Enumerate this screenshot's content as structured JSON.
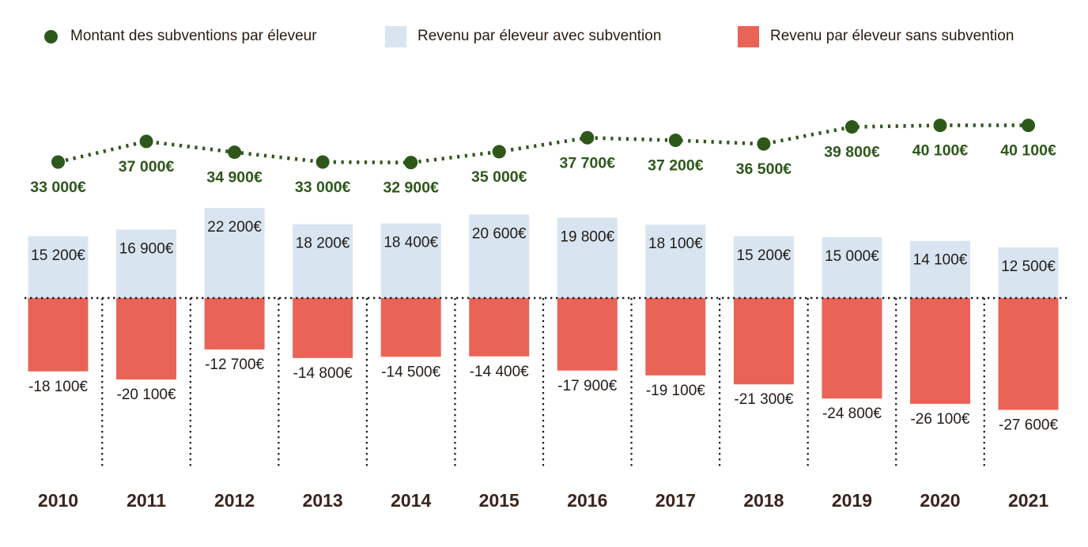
{
  "legend": {
    "items": [
      {
        "label": "Montant des subventions par éleveur",
        "swatch": "dot",
        "color": "#2d581a"
      },
      {
        "label": "Revenu par éleveur avec subvention",
        "swatch": "square",
        "color": "#d8e5f1"
      },
      {
        "label": "Revenu par éleveur sans subvention",
        "swatch": "square",
        "color": "#e96457"
      }
    ]
  },
  "chart_data": {
    "type": "combo-bar-line",
    "categories": [
      "2010",
      "2011",
      "2012",
      "2013",
      "2014",
      "2015",
      "2016",
      "2017",
      "2018",
      "2019",
      "2020",
      "2021"
    ],
    "series": [
      {
        "name": "Montant des subventions par éleveur",
        "type": "line",
        "style": "dotted",
        "color": "#2d581a",
        "values": [
          33000,
          37000,
          34900,
          33000,
          32900,
          35000,
          37700,
          37200,
          36500,
          39800,
          40100,
          40100
        ],
        "labels": [
          "33 000€",
          "37 000€",
          "34 900€",
          "33 000€",
          "32 900€",
          "35 000€",
          "37 700€",
          "37 200€",
          "36 500€",
          "39 800€",
          "40 100€",
          "40 100€"
        ]
      },
      {
        "name": "Revenu par éleveur avec subvention",
        "type": "bar",
        "color": "#d8e5f1",
        "values": [
          15200,
          16900,
          22200,
          18200,
          18400,
          20600,
          19800,
          18100,
          15200,
          15000,
          14100,
          12500
        ],
        "labels": [
          "15 200€",
          "16 900€",
          "22 200€",
          "18 200€",
          "18 400€",
          "20 600€",
          "19 800€",
          "18 100€",
          "15 200€",
          "15 000€",
          "14 100€",
          "12 500€"
        ]
      },
      {
        "name": "Revenu par éleveur sans subvention",
        "type": "bar",
        "color": "#e96457",
        "values": [
          -18100,
          -20100,
          -12700,
          -14800,
          -14500,
          -14400,
          -17900,
          -19100,
          -21300,
          -24800,
          -26100,
          -27600
        ],
        "labels": [
          "-18 100€",
          "-20 100€",
          "-12 700€",
          "-14 800€",
          "-14 500€",
          "-14 400€",
          "-17 900€",
          "-19 100€",
          "-21 300€",
          "-24 800€",
          "-26 100€",
          "-27 600€"
        ]
      }
    ],
    "value_suffix": "€",
    "title": "",
    "xlabel": "",
    "ylabel": "",
    "bar_ylim": [
      -30000,
      25000
    ],
    "line_ylim": [
      30000,
      42000
    ],
    "grid": "dotted horizontal zero line and dotted vertical separators between years",
    "legend_position": "top"
  },
  "colors": {
    "line_green": "#2d581a",
    "bar_blue": "#d8e5f1",
    "bar_red": "#e96457",
    "axis_dots": "#1c1c1c",
    "value_label_text": "#221c18",
    "year_label_text": "#3a241a",
    "background": "#ffffff"
  }
}
